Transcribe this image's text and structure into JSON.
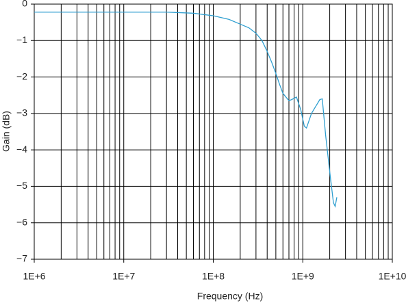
{
  "chart_data": {
    "type": "line",
    "x_label": "Frequency (Hz)",
    "y_label": "Gain (dB)",
    "log_x": true,
    "grid": true,
    "series": [
      {
        "color": "#2f9fd0",
        "x": [
          1000000,
          3000000,
          10000000,
          30000000,
          60000000,
          100000000,
          150000000,
          200000000,
          250000000,
          300000000,
          350000000,
          400000000,
          450000000,
          500000000,
          550000000,
          600000000,
          700000000,
          750000000,
          850000000,
          950000000,
          1040000000,
          1100000000,
          1250000000,
          1400000000,
          1550000000,
          1650000000,
          1800000000,
          2000000000,
          2200000000,
          2300000000,
          2400000000
        ],
        "values": [
          -0.22,
          -0.22,
          -0.22,
          -0.22,
          -0.25,
          -0.32,
          -0.42,
          -0.55,
          -0.65,
          -0.8,
          -1.0,
          -1.3,
          -1.6,
          -1.9,
          -2.2,
          -2.45,
          -2.65,
          -2.62,
          -2.55,
          -2.9,
          -3.35,
          -3.4,
          -3.0,
          -2.8,
          -2.62,
          -2.6,
          -3.6,
          -4.6,
          -5.45,
          -5.55,
          -5.3
        ]
      }
    ],
    "xlim": [
      1000000,
      10000000000
    ],
    "xticks": [
      {
        "value": 1000000,
        "label": "1E+6"
      },
      {
        "value": 10000000,
        "label": "1E+7"
      },
      {
        "value": 100000000,
        "label": "1E+8"
      },
      {
        "value": 1000000000,
        "label": "1E+9"
      },
      {
        "value": 10000000000,
        "label": "1E+10"
      }
    ],
    "xminorticks": [
      2000000,
      3000000,
      4000000,
      5000000,
      6000000,
      7000000,
      8000000,
      9000000,
      20000000,
      30000000,
      40000000,
      50000000,
      60000000,
      70000000,
      80000000,
      90000000,
      200000000,
      300000000,
      400000000,
      500000000,
      600000000,
      700000000,
      800000000,
      900000000,
      2000000000,
      3000000000,
      4000000000,
      5000000000,
      6000000000,
      7000000000,
      8000000000,
      9000000000
    ],
    "ylim": [
      -7,
      0
    ],
    "yticks": [
      0,
      {
        "value": -1,
        "label": "−1"
      },
      {
        "value": -2,
        "label": "−2"
      },
      {
        "value": -3,
        "label": "−3"
      },
      {
        "value": -4,
        "label": "−4"
      },
      {
        "value": -5,
        "label": "−5"
      },
      {
        "value": -6,
        "label": "−6"
      },
      {
        "value": -7,
        "label": "−7"
      }
    ]
  }
}
